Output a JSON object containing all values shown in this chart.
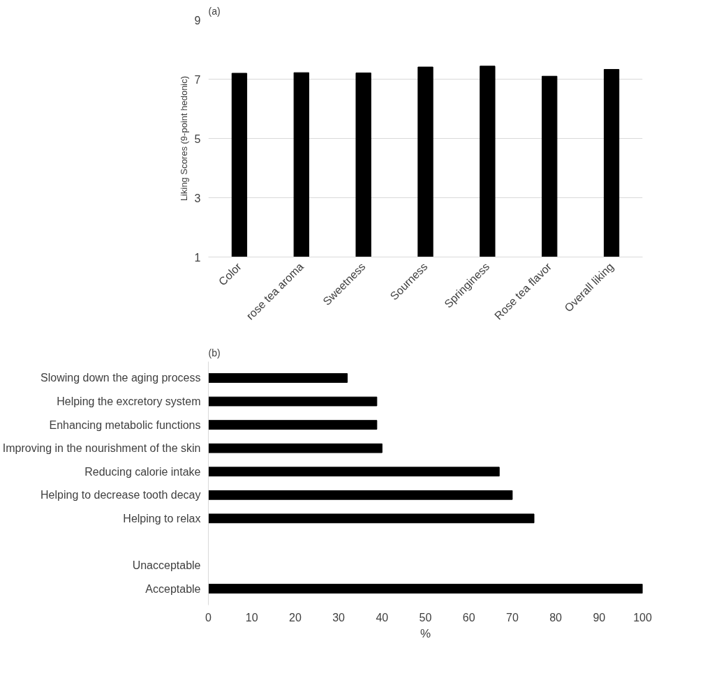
{
  "chart_data": [
    {
      "type": "bar",
      "title": "(a)",
      "ylabel": "Liking Scores (9-point hedonic)",
      "categories": [
        "Color",
        "rose tea aroma",
        "Sweetness",
        "Sourness",
        "Springiness",
        "Rose tea flavor",
        "Overall liking"
      ],
      "values": [
        7.2,
        7.22,
        7.21,
        7.41,
        7.44,
        7.1,
        7.33
      ],
      "color": "#000000",
      "ylim": [
        1,
        9
      ],
      "yticks": [
        1,
        3,
        5,
        7,
        9
      ],
      "grid": "y"
    },
    {
      "type": "bar",
      "title": "(b)",
      "xlabel": "%",
      "orientation": "horizontal",
      "categories": [
        "Slowing down the aging process",
        "Helping the excretory system",
        "Enhancing metabolic functions",
        "Improving in the nourishment of the skin",
        "Reducing calorie intake",
        "Helping to decrease tooth decay",
        "Helping to relax",
        null,
        "Unacceptable",
        "Acceptable"
      ],
      "values": [
        32,
        38.8,
        38.8,
        40,
        67,
        70,
        75,
        null,
        0,
        100
      ],
      "color": "#000000",
      "xlim": [
        0,
        100
      ],
      "xticks": [
        0,
        10,
        20,
        30,
        40,
        50,
        60,
        70,
        80,
        90,
        100
      ],
      "grid": false
    }
  ]
}
